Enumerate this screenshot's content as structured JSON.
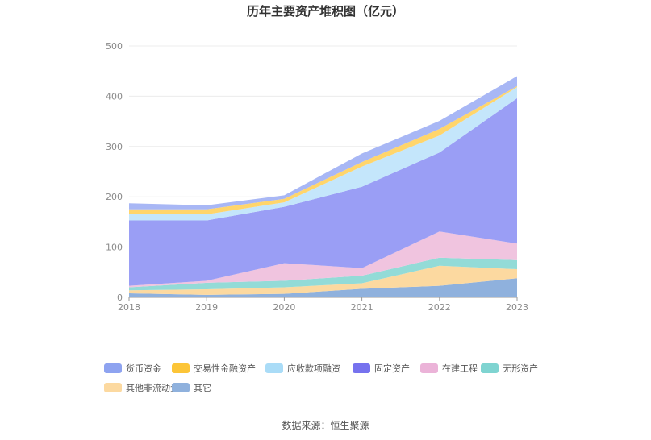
{
  "chart_data": {
    "type": "area",
    "stacked": true,
    "title": "历年主要资产堆积图（亿元）",
    "x": [
      "2018",
      "2019",
      "2020",
      "2021",
      "2022",
      "2023"
    ],
    "ylim": [
      0,
      500
    ],
    "yticks": [
      0,
      100,
      200,
      300,
      400,
      500
    ],
    "grid": true,
    "legend_position": "bottom",
    "source": "数据来源：恒生聚源",
    "series": [
      {
        "name": "其它",
        "color": "#8fb1dd",
        "values": [
          8,
          5,
          7,
          17,
          23,
          38
        ]
      },
      {
        "name": "其他非流动资产",
        "color": "#fcd9a0",
        "values": [
          6,
          11,
          13,
          11,
          40,
          18
        ]
      },
      {
        "name": "无形资产",
        "color": "#93dbd7",
        "values": [
          6,
          13,
          13,
          15,
          16,
          18
        ]
      },
      {
        "name": "在建工程",
        "color": "#f0c4df",
        "values": [
          3,
          4,
          35,
          15,
          52,
          33
        ]
      },
      {
        "name": "固定资产",
        "color": "#9a9ef5",
        "values": [
          130,
          120,
          112,
          162,
          157,
          289
        ]
      },
      {
        "name": "应收款项融资",
        "color": "#c4e6fb",
        "values": [
          12,
          12,
          9,
          40,
          34,
          22
        ]
      },
      {
        "name": "交易性金融资产",
        "color": "#ffd56b",
        "values": [
          10,
          10,
          7,
          9,
          13,
          2
        ]
      },
      {
        "name": "货币资金",
        "color": "#a8b7f5",
        "values": [
          12,
          8,
          7,
          17,
          16,
          20
        ]
      }
    ],
    "legend": [
      {
        "name": "货币资金",
        "color": "#8ea3f0"
      },
      {
        "name": "交易性金融资产",
        "color": "#fcc538"
      },
      {
        "name": "应收款项融资",
        "color": "#aadcf7"
      },
      {
        "name": "固定资产",
        "color": "#7672ee"
      },
      {
        "name": "在建工程",
        "color": "#ebb3d8"
      },
      {
        "name": "无形资产",
        "color": "#7fd4d1"
      },
      {
        "name": "其他非流动资产",
        "color": "#fcd9a0"
      },
      {
        "name": "其它",
        "color": "#8fb1dd"
      }
    ]
  }
}
